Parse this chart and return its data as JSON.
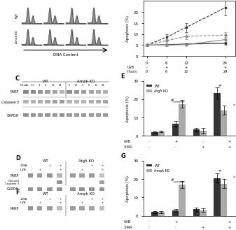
{
  "line_chart": {
    "ylabel": "Apoptosis (%)",
    "ylim": [
      0,
      25
    ],
    "yticks": [
      0,
      5,
      10,
      15,
      20
    ],
    "series": {
      "WT_noUVB": {
        "x": [
          0,
          6,
          12,
          24
        ],
        "y": [
          5.0,
          5.2,
          5.5,
          5.8
        ],
        "color": "#333333",
        "marker": "s",
        "linestyle": "-"
      },
      "AmpkKO_noUVB": {
        "x": [
          0,
          6,
          12,
          24
        ],
        "y": [
          5.0,
          5.0,
          5.2,
          7.5
        ],
        "color": "#888888",
        "marker": "o",
        "linestyle": "-"
      },
      "WT_UVB": {
        "x": [
          0,
          6,
          12,
          24
        ],
        "y": [
          5.0,
          8.5,
          13.0,
          22.0
        ],
        "color": "#333333",
        "marker": "s",
        "linestyle": "--"
      },
      "AmpkKO_UVB": {
        "x": [
          0,
          6,
          12,
          24
        ],
        "y": [
          5.0,
          7.0,
          9.0,
          9.5
        ],
        "color": "#888888",
        "marker": "o",
        "linestyle": "--"
      }
    },
    "errors": {
      "WT_noUVB": [
        0.3,
        0.3,
        0.4,
        0.5
      ],
      "AmpkKO_noUVB": [
        0.3,
        0.4,
        0.5,
        1.0
      ],
      "WT_UVB": [
        0.5,
        1.5,
        2.0,
        3.5
      ],
      "AmpkKO_UVB": [
        0.5,
        0.8,
        1.2,
        1.5
      ]
    }
  },
  "bar_chart_E": {
    "label": "E",
    "ylabel": "Apoptosis (%)",
    "ylim": [
      0,
      30
    ],
    "yticks": [
      0,
      10,
      20,
      30
    ],
    "WT_values": [
      2.0,
      6.5,
      3.5,
      23.5
    ],
    "WT_errors": [
      0.5,
      1.5,
      1.0,
      3.0
    ],
    "Atg5KO_values": [
      2.5,
      17.5,
      3.0,
      14.0
    ],
    "Atg5KO_errors": [
      0.5,
      2.0,
      1.5,
      2.5
    ],
    "WT_color": "#333333",
    "Atg5KO_color": "#aaaaaa",
    "legend": [
      "WT",
      "Atg5 KO"
    ],
    "xtick_uvb": [
      [
        "-",
        "+",
        "-",
        "+"
      ],
      [
        "-",
        "-",
        "+",
        "+"
      ]
    ]
  },
  "bar_chart_G": {
    "label": "G",
    "ylabel": "Apoptosis (%)",
    "ylim": [
      0,
      30
    ],
    "yticks": [
      0,
      10,
      20,
      30
    ],
    "WT_values": [
      2.0,
      3.0,
      3.5,
      20.5
    ],
    "WT_errors": [
      0.5,
      0.8,
      1.0,
      2.5
    ],
    "AmpkKO_values": [
      2.0,
      17.0,
      3.0,
      17.5
    ],
    "AmpkKO_errors": [
      0.5,
      2.0,
      1.0,
      2.5
    ],
    "WT_color": "#333333",
    "AmpkKO_color": "#aaaaaa",
    "legend": [
      "WT",
      "Ampk KO"
    ],
    "xtick_uvb": [
      [
        "-",
        "+",
        "-",
        "+"
      ],
      [
        "-",
        "-",
        "+",
        "+"
      ]
    ]
  },
  "flow_labels": {
    "row1": "WT",
    "row2": "Ampk KO",
    "xlabel": "DNA Content"
  },
  "bg_color": "#ffffff"
}
